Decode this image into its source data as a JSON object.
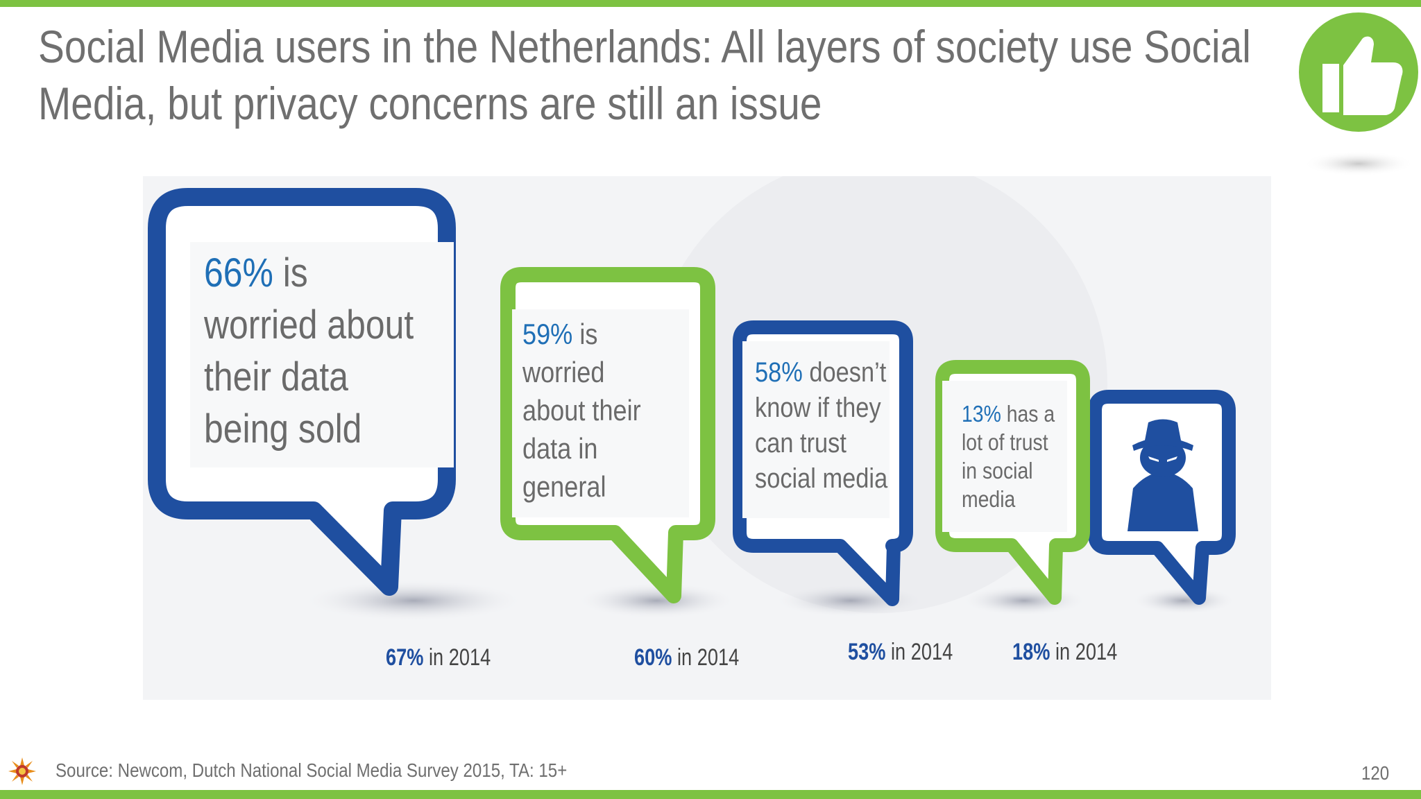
{
  "title": {
    "line1": "Social Media users in the Netherlands: All layers of society use Social",
    "line2": "Media, but privacy concerns are still an issue"
  },
  "colors": {
    "green": "#7dc242",
    "blue": "#1f4fa0",
    "pct_blue": "#1f6fb6",
    "text_gray": "#6a6a6a"
  },
  "bubbles": [
    {
      "pct": "66%",
      "lines": [
        " is",
        "worried about",
        "their data",
        "being sold"
      ],
      "prior": {
        "pct": "67%",
        "text": " in 2014"
      }
    },
    {
      "pct": "59%",
      "lines": [
        " is",
        "worried",
        "about their",
        "data in",
        "general"
      ],
      "prior": {
        "pct": "60%",
        "text": " in 2014"
      }
    },
    {
      "pct": "58%",
      "lines": [
        " doesn’t",
        "know if they",
        "can trust",
        "social media"
      ],
      "prior": {
        "pct": "53%",
        "text": " in 2014"
      }
    },
    {
      "pct": "13%",
      "lines": [
        " has a",
        "lot of trust",
        "in social",
        "media"
      ],
      "prior": {
        "pct": "18%",
        "text": " in 2014"
      }
    }
  ],
  "icons": {
    "spy": "spy-icon",
    "thumb": "thumbs-up-icon",
    "source": "sun-logo-icon"
  },
  "footer": {
    "source": "Source: Newcom, Dutch National Social Media Survey 2015, TA: 15+",
    "page_number": "120"
  }
}
